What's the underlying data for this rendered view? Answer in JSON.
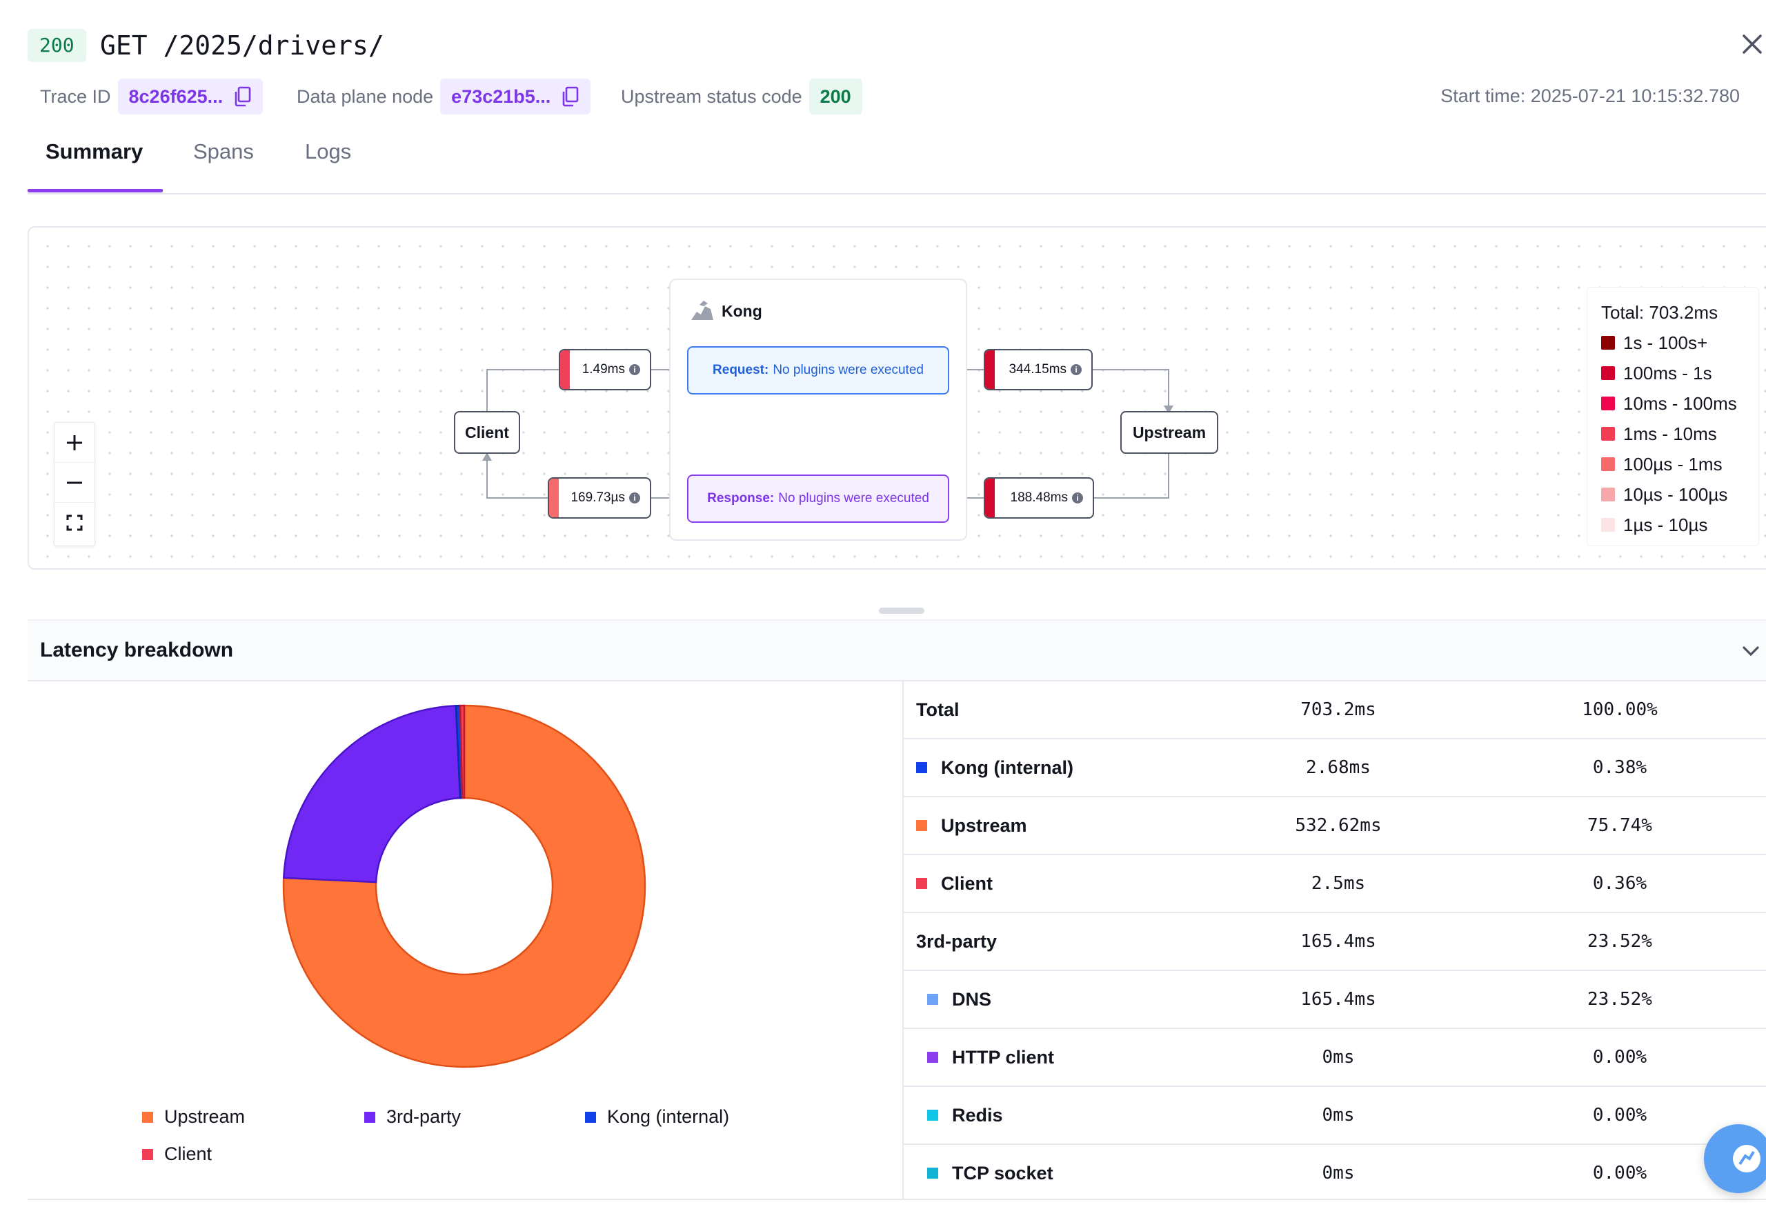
{
  "header": {
    "status": "200",
    "title": "GET /2025/drivers/",
    "trace_label": "Trace ID",
    "trace_id": "8c26f625...",
    "node_label": "Data plane node",
    "node_id": "e73c21b5...",
    "upstream_label": "Upstream status code",
    "upstream_code": "200",
    "start_time": "Start time: 2025-07-21 10:15:32.780"
  },
  "tabs": [
    {
      "label": "Summary",
      "active": true
    },
    {
      "label": "Spans",
      "active": false
    },
    {
      "label": "Logs",
      "active": false
    }
  ],
  "flow": {
    "client": "Client",
    "upstream": "Upstream",
    "kong": "Kong",
    "request_label": "Request:",
    "request_text": "No plugins were executed",
    "response_label": "Response:",
    "response_text": "No plugins were executed",
    "t_client_req": "1.49ms",
    "t_kong_upstream": "344.15ms",
    "t_upstream_kong": "188.48ms",
    "t_kong_client": "169.73µs",
    "colors": {
      "t_client_req": "#f0405a",
      "t_kong_upstream": "#d5082e",
      "t_upstream_kong": "#d5082e",
      "t_kong_client": "#f56b6b"
    }
  },
  "legend": {
    "total": "Total: 703.2ms",
    "items": [
      {
        "label": "1s - 100s+",
        "color": "#8b0000"
      },
      {
        "label": "100ms - 1s",
        "color": "#d1002f"
      },
      {
        "label": "10ms - 100ms",
        "color": "#f0064d"
      },
      {
        "label": "1ms - 10ms",
        "color": "#f23e55"
      },
      {
        "label": "100µs - 1ms",
        "color": "#f56b6b"
      },
      {
        "label": "10µs - 100µs",
        "color": "#f7a7aa"
      },
      {
        "label": "1µs - 10µs",
        "color": "#fde4e4"
      }
    ]
  },
  "latency": {
    "title": "Latency breakdown",
    "rows": [
      {
        "label": "Total",
        "value": "703.2ms",
        "pct": "100.00%",
        "color": "",
        "child": false
      },
      {
        "label": "Kong (internal)",
        "value": "2.68ms",
        "pct": "0.38%",
        "color": "#1040e8",
        "child": false
      },
      {
        "label": "Upstream",
        "value": "532.62ms",
        "pct": "75.74%",
        "color": "#ff7438",
        "child": false
      },
      {
        "label": "Client",
        "value": "2.5ms",
        "pct": "0.36%",
        "color": "#f23e55",
        "child": false
      },
      {
        "label": "3rd-party",
        "value": "165.4ms",
        "pct": "23.52%",
        "color": "",
        "child": false
      },
      {
        "label": "DNS",
        "value": "165.4ms",
        "pct": "23.52%",
        "color": "#6ea3f7",
        "child": true
      },
      {
        "label": "HTTP client",
        "value": "0ms",
        "pct": "0.00%",
        "color": "#8a3ef0",
        "child": true
      },
      {
        "label": "Redis",
        "value": "0ms",
        "pct": "0.00%",
        "color": "#12c4e8",
        "child": true
      },
      {
        "label": "TCP socket",
        "value": "0ms",
        "pct": "0.00%",
        "color": "#13b3d4",
        "child": true
      }
    ]
  },
  "chart_data": {
    "type": "pie",
    "categories": [
      "Upstream",
      "3rd-party",
      "Kong (internal)",
      "Client"
    ],
    "values": [
      75.74,
      23.52,
      0.38,
      0.36
    ],
    "colors": [
      "#ff7438",
      "#7128f5",
      "#1040e8",
      "#f23e55"
    ],
    "legend": [
      "Upstream",
      "3rd-party",
      "Kong (internal)",
      "Client"
    ],
    "legend_position": "bottom"
  }
}
